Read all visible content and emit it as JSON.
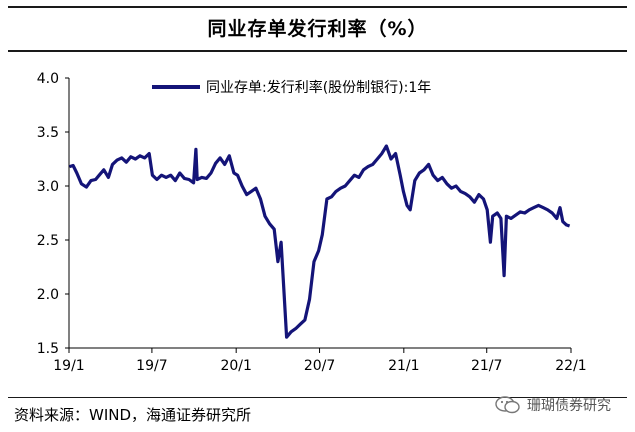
{
  "header": {
    "title": "同业存单发行利率（%）"
  },
  "footer": {
    "source": "资料来源：WIND，海通证券研究所",
    "watermark": "珊瑚债券研究"
  },
  "colors": {
    "series": "#141478",
    "axis": "#000000"
  },
  "chart_data": {
    "type": "line",
    "ylim": [
      1.5,
      4.0
    ],
    "yticks": [
      "1.5",
      "2.0",
      "2.5",
      "3.0",
      "3.5",
      "4.0"
    ],
    "xticks": [
      "19/1",
      "19/7",
      "20/1",
      "20/7",
      "21/1",
      "21/7",
      "22/1"
    ],
    "legend_position": "top",
    "series": [
      {
        "name": "同业存单:发行利率(股份制银行):1年",
        "points": [
          [
            "2019-01-02",
            3.18
          ],
          [
            "2019-01-10",
            3.19
          ],
          [
            "2019-01-18",
            3.12
          ],
          [
            "2019-01-28",
            3.02
          ],
          [
            "2019-02-08",
            2.99
          ],
          [
            "2019-02-18",
            3.05
          ],
          [
            "2019-02-28",
            3.06
          ],
          [
            "2019-03-08",
            3.1
          ],
          [
            "2019-03-18",
            3.15
          ],
          [
            "2019-03-28",
            3.08
          ],
          [
            "2019-04-06",
            3.2
          ],
          [
            "2019-04-16",
            3.24
          ],
          [
            "2019-04-26",
            3.26
          ],
          [
            "2019-05-06",
            3.22
          ],
          [
            "2019-05-16",
            3.27
          ],
          [
            "2019-05-26",
            3.25
          ],
          [
            "2019-06-05",
            3.28
          ],
          [
            "2019-06-15",
            3.26
          ],
          [
            "2019-06-25",
            3.3
          ],
          [
            "2019-07-02",
            3.1
          ],
          [
            "2019-07-12",
            3.06
          ],
          [
            "2019-07-22",
            3.1
          ],
          [
            "2019-08-01",
            3.08
          ],
          [
            "2019-08-11",
            3.1
          ],
          [
            "2019-08-21",
            3.05
          ],
          [
            "2019-08-31",
            3.12
          ],
          [
            "2019-09-10",
            3.07
          ],
          [
            "2019-09-20",
            3.06
          ],
          [
            "2019-09-30",
            3.03
          ],
          [
            "2019-10-05",
            3.34
          ],
          [
            "2019-10-08",
            3.06
          ],
          [
            "2019-10-18",
            3.08
          ],
          [
            "2019-10-28",
            3.07
          ],
          [
            "2019-11-07",
            3.12
          ],
          [
            "2019-11-17",
            3.21
          ],
          [
            "2019-11-27",
            3.26
          ],
          [
            "2019-12-07",
            3.2
          ],
          [
            "2019-12-17",
            3.28
          ],
          [
            "2019-12-27",
            3.12
          ],
          [
            "2020-01-04",
            3.1
          ],
          [
            "2020-01-14",
            3.0
          ],
          [
            "2020-01-24",
            2.92
          ],
          [
            "2020-02-03",
            2.95
          ],
          [
            "2020-02-13",
            2.98
          ],
          [
            "2020-02-23",
            2.88
          ],
          [
            "2020-03-04",
            2.72
          ],
          [
            "2020-03-14",
            2.65
          ],
          [
            "2020-03-24",
            2.6
          ],
          [
            "2020-04-01",
            2.3
          ],
          [
            "2020-04-08",
            2.48
          ],
          [
            "2020-04-14",
            2.05
          ],
          [
            "2020-04-20",
            1.6
          ],
          [
            "2020-04-30",
            1.65
          ],
          [
            "2020-05-10",
            1.68
          ],
          [
            "2020-05-20",
            1.72
          ],
          [
            "2020-05-30",
            1.76
          ],
          [
            "2020-06-09",
            1.95
          ],
          [
            "2020-06-19",
            2.3
          ],
          [
            "2020-06-29",
            2.4
          ],
          [
            "2020-07-07",
            2.55
          ],
          [
            "2020-07-17",
            2.88
          ],
          [
            "2020-07-27",
            2.9
          ],
          [
            "2020-08-06",
            2.95
          ],
          [
            "2020-08-16",
            2.98
          ],
          [
            "2020-08-26",
            3.0
          ],
          [
            "2020-09-05",
            3.05
          ],
          [
            "2020-09-15",
            3.1
          ],
          [
            "2020-09-25",
            3.08
          ],
          [
            "2020-10-05",
            3.15
          ],
          [
            "2020-10-15",
            3.18
          ],
          [
            "2020-10-25",
            3.2
          ],
          [
            "2020-11-04",
            3.25
          ],
          [
            "2020-11-14",
            3.3
          ],
          [
            "2020-11-24",
            3.37
          ],
          [
            "2020-12-04",
            3.25
          ],
          [
            "2020-12-14",
            3.3
          ],
          [
            "2020-12-24",
            3.1
          ],
          [
            "2020-12-31",
            2.95
          ],
          [
            "2021-01-08",
            2.82
          ],
          [
            "2021-01-15",
            2.78
          ],
          [
            "2021-01-25",
            3.05
          ],
          [
            "2021-02-04",
            3.12
          ],
          [
            "2021-02-14",
            3.15
          ],
          [
            "2021-02-24",
            3.2
          ],
          [
            "2021-03-06",
            3.1
          ],
          [
            "2021-03-16",
            3.05
          ],
          [
            "2021-03-26",
            3.08
          ],
          [
            "2021-04-05",
            3.02
          ],
          [
            "2021-04-15",
            2.98
          ],
          [
            "2021-04-25",
            3.0
          ],
          [
            "2021-05-05",
            2.95
          ],
          [
            "2021-05-15",
            2.93
          ],
          [
            "2021-05-25",
            2.9
          ],
          [
            "2021-06-04",
            2.85
          ],
          [
            "2021-06-14",
            2.92
          ],
          [
            "2021-06-24",
            2.88
          ],
          [
            "2021-07-02",
            2.78
          ],
          [
            "2021-07-09",
            2.48
          ],
          [
            "2021-07-14",
            2.72
          ],
          [
            "2021-07-24",
            2.75
          ],
          [
            "2021-08-01",
            2.7
          ],
          [
            "2021-08-08",
            2.17
          ],
          [
            "2021-08-13",
            2.72
          ],
          [
            "2021-08-23",
            2.7
          ],
          [
            "2021-09-02",
            2.73
          ],
          [
            "2021-09-12",
            2.76
          ],
          [
            "2021-09-22",
            2.75
          ],
          [
            "2021-10-02",
            2.78
          ],
          [
            "2021-10-12",
            2.8
          ],
          [
            "2021-10-22",
            2.82
          ],
          [
            "2021-11-01",
            2.8
          ],
          [
            "2021-11-11",
            2.78
          ],
          [
            "2021-11-21",
            2.75
          ],
          [
            "2021-12-01",
            2.7
          ],
          [
            "2021-12-08",
            2.8
          ],
          [
            "2021-12-14",
            2.67
          ],
          [
            "2021-12-22",
            2.64
          ],
          [
            "2021-12-29",
            2.63
          ]
        ]
      }
    ]
  }
}
